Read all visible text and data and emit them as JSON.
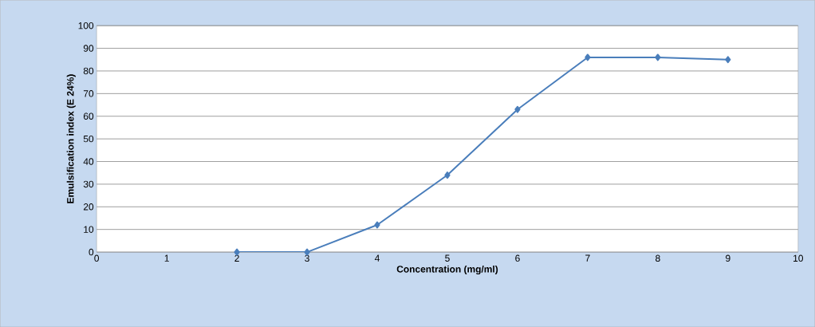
{
  "chart_data": {
    "type": "line",
    "xlabel": "Concentration (mg/ml)",
    "ylabel": "Emulsification index (E 24%)",
    "x": [
      2,
      3,
      4,
      5,
      6,
      7,
      8,
      9
    ],
    "series": [
      {
        "color": "#4a7ebb",
        "values": [
          0,
          0,
          12,
          34,
          63,
          86,
          86,
          85
        ]
      }
    ],
    "xlim": [
      0,
      10
    ],
    "xticks": [
      0,
      1,
      2,
      3,
      4,
      5,
      6,
      7,
      8,
      9,
      10
    ],
    "ylim": [
      0,
      100
    ],
    "yticks": [
      0,
      10,
      20,
      30,
      40,
      50,
      60,
      70,
      80,
      90,
      100
    ],
    "grid": "y",
    "marker": "diamond",
    "line_style": "solid"
  }
}
